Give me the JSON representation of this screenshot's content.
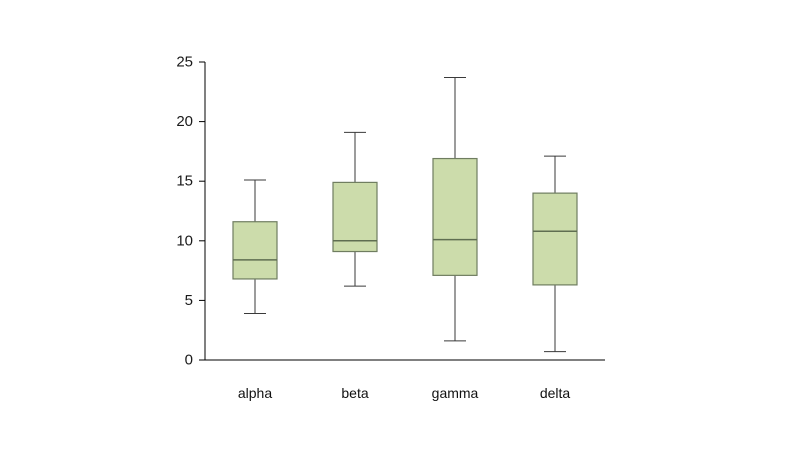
{
  "chart_data": {
    "type": "boxplot",
    "title": "",
    "xlabel": "",
    "ylabel": "",
    "categories": [
      "alpha",
      "beta",
      "gamma",
      "delta"
    ],
    "series": [
      {
        "name": "alpha",
        "low": 3.9,
        "q1": 6.8,
        "median": 8.4,
        "q3": 11.6,
        "high": 15.1
      },
      {
        "name": "beta",
        "low": 6.2,
        "q1": 9.1,
        "median": 10.0,
        "q3": 14.9,
        "high": 19.1
      },
      {
        "name": "gamma",
        "low": 1.6,
        "q1": 7.1,
        "median": 10.1,
        "q3": 16.9,
        "high": 23.7
      },
      {
        "name": "delta",
        "low": 0.7,
        "q1": 6.3,
        "median": 10.8,
        "q3": 14.0,
        "high": 17.1
      }
    ],
    "ylim": [
      0,
      25
    ],
    "yticks": [
      0,
      5,
      10,
      15,
      20,
      25
    ],
    "grid": false,
    "legend": false,
    "colors": {
      "box_fill": "#ccdcab",
      "box_stroke": "#6f7d60",
      "median": "#5f6e51",
      "whisker": "#3a3a3a",
      "axis": "#000000",
      "tick_label": "#1a1a1a",
      "category_label": "#111111"
    }
  }
}
